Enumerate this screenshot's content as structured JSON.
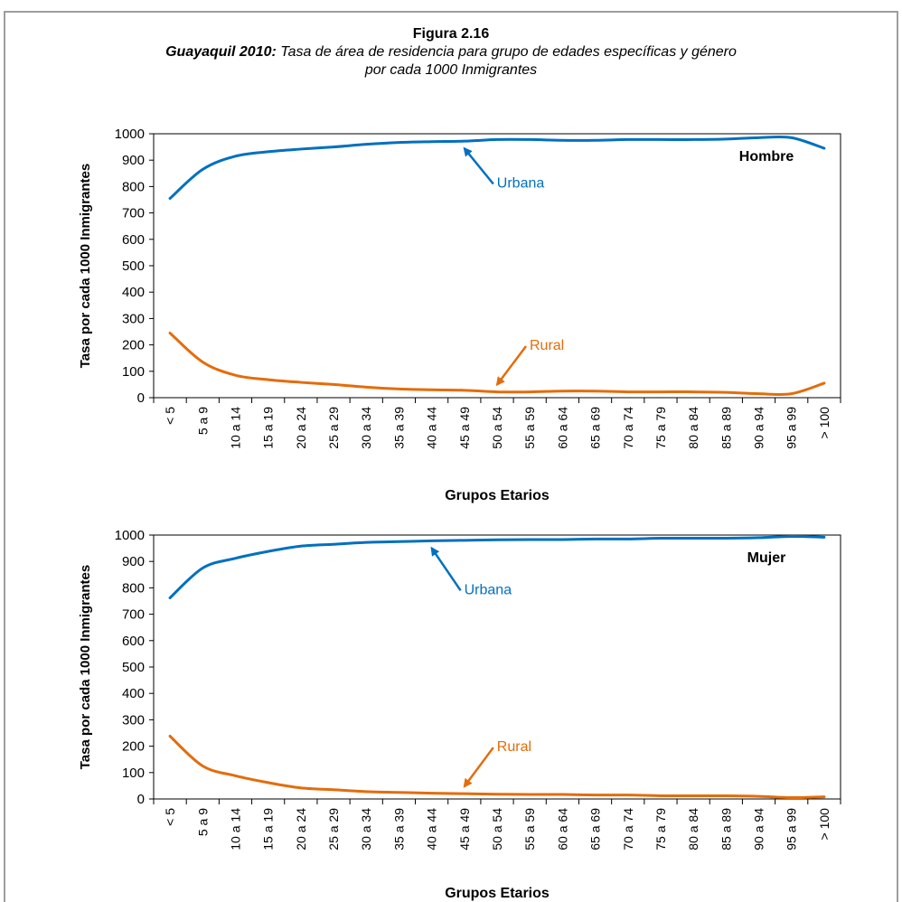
{
  "figure": {
    "number": "Figura 2.16",
    "subtitle_bold": "Guayaquil 2010:",
    "subtitle_line1": " Tasa de área de residencia para grupo de edades específicas y género",
    "subtitle_line2": "por cada 1000 Inmigrantes"
  },
  "colors": {
    "urbana": "#0070C0",
    "rural": "#E46C0A",
    "axis": "#000000"
  },
  "chart_data": [
    {
      "type": "line",
      "title": "Hombre",
      "xlabel": "Grupos Etarios",
      "ylabel": "Tasa por cada 1000 Inmigrantes",
      "ylim": [
        0,
        1000
      ],
      "yticks": [
        0,
        100,
        200,
        300,
        400,
        500,
        600,
        700,
        800,
        900,
        1000
      ],
      "categories": [
        "< 5",
        "5 a 9",
        "10 a 14",
        "15 a 19",
        "20 a 24",
        "25 a 29",
        "30 a 34",
        "35 a 39",
        "40 a 44",
        "45 a 49",
        "50 a 54",
        "55 a 59",
        "60 a 64",
        "65 a 69",
        "70 a 74",
        "75 a 79",
        "80 a 84",
        "85 a 89",
        "90 a 94",
        "95 a 99",
        "> 100"
      ],
      "series": [
        {
          "name": "Urbana",
          "values": [
            755,
            865,
            915,
            932,
            942,
            950,
            960,
            967,
            970,
            972,
            978,
            978,
            975,
            975,
            978,
            978,
            978,
            980,
            985,
            985,
            945
          ]
        },
        {
          "name": "Rural",
          "values": [
            245,
            135,
            85,
            68,
            58,
            50,
            40,
            33,
            30,
            28,
            22,
            22,
            25,
            25,
            22,
            22,
            22,
            20,
            15,
            15,
            55
          ]
        }
      ],
      "annotations": [
        {
          "text": "Urbana",
          "series": "Urbana",
          "at_category": "45 a 49",
          "label_y": 810
        },
        {
          "text": "Rural",
          "series": "Rural",
          "at_category": "50 a 54",
          "label_y": 195
        }
      ],
      "grid": false
    },
    {
      "type": "line",
      "title": "Mujer",
      "xlabel": "Grupos Etarios",
      "ylabel": "Tasa por cada 1000 Inmigrantes",
      "ylim": [
        0,
        1000
      ],
      "yticks": [
        0,
        100,
        200,
        300,
        400,
        500,
        600,
        700,
        800,
        900,
        1000
      ],
      "categories": [
        "< 5",
        "5 a 9",
        "10 a 14",
        "15 a 19",
        "20 a 24",
        "25 a 29",
        "30 a 34",
        "35 a 39",
        "40 a 44",
        "45 a 49",
        "50 a 54",
        "55 a 59",
        "60 a 64",
        "65 a 69",
        "70 a 74",
        "75 a 79",
        "80 a 84",
        "85 a 89",
        "90 a 94",
        "95 a 99",
        "> 100"
      ],
      "series": [
        {
          "name": "Urbana",
          "values": [
            762,
            875,
            912,
            938,
            958,
            965,
            972,
            975,
            978,
            980,
            982,
            983,
            983,
            985,
            985,
            988,
            988,
            988,
            990,
            995,
            992
          ]
        },
        {
          "name": "Rural",
          "values": [
            238,
            125,
            88,
            62,
            42,
            35,
            28,
            25,
            22,
            20,
            18,
            17,
            17,
            15,
            15,
            12,
            12,
            12,
            10,
            5,
            8
          ]
        }
      ],
      "annotations": [
        {
          "text": "Urbana",
          "series": "Urbana",
          "at_category": "40 a 44",
          "label_y": 790
        },
        {
          "text": "Rural",
          "series": "Rural",
          "at_category": "45 a 49",
          "label_y": 195
        }
      ],
      "grid": false
    }
  ]
}
